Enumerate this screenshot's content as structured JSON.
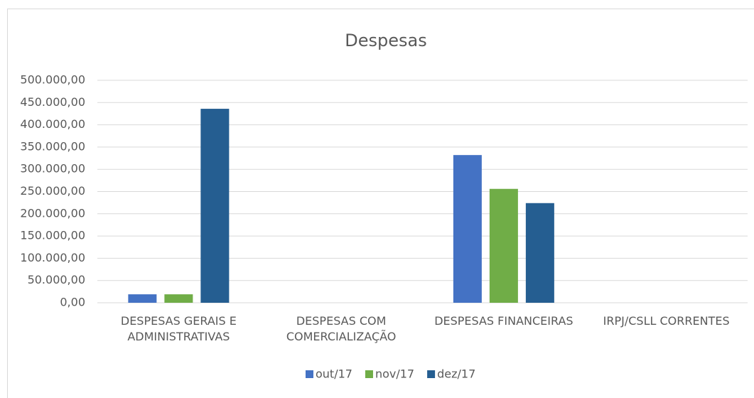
{
  "chart_data": {
    "type": "bar",
    "title": "Despesas",
    "categories": [
      "DESPESAS GERAIS E ADMINISTRATIVAS",
      "DESPESAS COM COMERCIALIZAÇÃO",
      "DESPESAS FINANCEIRAS",
      "IRPJ/CSLL CORRENTES"
    ],
    "series": [
      {
        "name": "out/17",
        "color": "#4472c4",
        "values": [
          19000,
          0,
          332000,
          0
        ]
      },
      {
        "name": "nov/17",
        "color": "#70ad47",
        "values": [
          19000,
          0,
          256000,
          0
        ]
      },
      {
        "name": "dez/17",
        "color": "#255e91",
        "values": [
          436000,
          0,
          224000,
          0
        ]
      }
    ],
    "ylim": [
      0,
      500000
    ],
    "yticks": [
      {
        "value": 0,
        "label": "0,00"
      },
      {
        "value": 50000,
        "label": "50.000,00"
      },
      {
        "value": 100000,
        "label": "100.000,00"
      },
      {
        "value": 150000,
        "label": "150.000,00"
      },
      {
        "value": 200000,
        "label": "200.000,00"
      },
      {
        "value": 250000,
        "label": "250.000,00"
      },
      {
        "value": 300000,
        "label": "300.000,00"
      },
      {
        "value": 350000,
        "label": "350.000,00"
      },
      {
        "value": 400000,
        "label": "400.000,00"
      },
      {
        "value": 450000,
        "label": "450.000,00"
      },
      {
        "value": 500000,
        "label": "500.000,00"
      }
    ],
    "grid": true,
    "legend": "bottom"
  }
}
